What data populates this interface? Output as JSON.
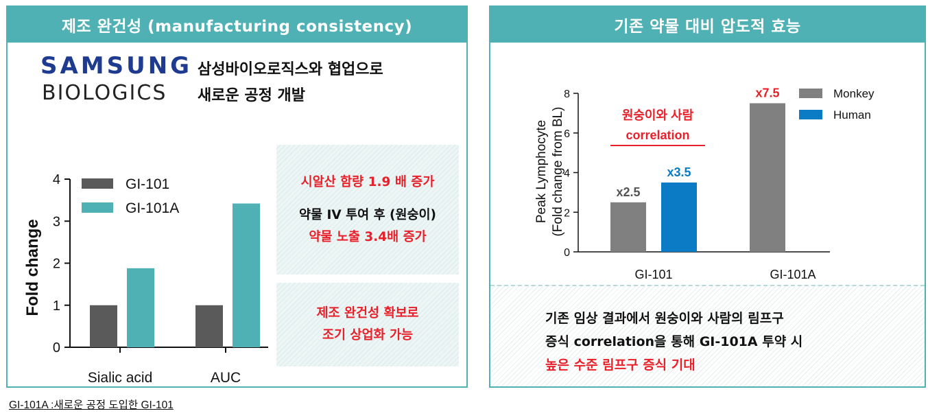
{
  "left_panel": {
    "title": "제조 완건성 (manufacturing consistency)",
    "brand": {
      "line1": "SAMSUNG",
      "line2": "BIOLOGICS"
    },
    "collab_line1": "삼성바이오로직스와 협업으로",
    "collab_line2": "새로운 공정 개발",
    "box_a": {
      "line1": "시알산 함량 1.9 배 증가",
      "line2": "약물 IV 투여 후 (원숭이)",
      "line3": "약물 노출 3.4배 증가"
    },
    "box_b": {
      "line1": "제조 완건성 확보로",
      "line2": "조기 상업화 가능"
    }
  },
  "right_panel": {
    "title": "기존 약물 대비 압도적 효능",
    "note_line1": "기존 임상 결과에서 원숭이와 사람의 림프구",
    "note_line2": "증식 correlation을 통해 GI-101A 투약 시",
    "note_line3": "높은 수준 림프구 증식 기대"
  },
  "footnote": "GI-101A :새로운 공정 도입한 GI-101",
  "colors": {
    "teal": "#4fb1b4",
    "dark_gray": "#5a5a5a",
    "gray": "#808080",
    "blue": "#0a7bc4",
    "red": "#e8202a"
  },
  "chart_data": [
    {
      "type": "bar",
      "categories": [
        "Sialic acid",
        "AUC"
      ],
      "series": [
        {
          "name": "GI-101",
          "values": [
            1.0,
            1.0
          ],
          "color": "#5a5a5a"
        },
        {
          "name": "GI-101A",
          "values": [
            1.88,
            3.42
          ],
          "color": "#4fb1b4"
        }
      ],
      "ylabel": "Fold change",
      "ylim": [
        0,
        4
      ],
      "yticks": [
        "0",
        "1",
        "2",
        "3",
        "4"
      ],
      "legend": "top-left",
      "grid": false
    },
    {
      "type": "bar",
      "categories": [
        "GI-101",
        "GI-101A"
      ],
      "series": [
        {
          "name": "Monkey",
          "values": [
            2.5,
            7.5
          ],
          "color": "#808080"
        },
        {
          "name": "Human",
          "values": [
            3.5,
            null
          ],
          "color": "#0a7bc4"
        }
      ],
      "data_labels": [
        "x2.5",
        "x3.5",
        "x7.5"
      ],
      "ylabel_line1": "Peak Lymphocyte",
      "ylabel_line2": "(Fold change from BL)",
      "ylim": [
        0,
        8
      ],
      "yticks": [
        "0",
        "2",
        "4",
        "6",
        "8"
      ],
      "legend": "top-right",
      "grid": false,
      "annotation_line1": "원숭이와 사람",
      "annotation_line2": "correlation"
    }
  ]
}
